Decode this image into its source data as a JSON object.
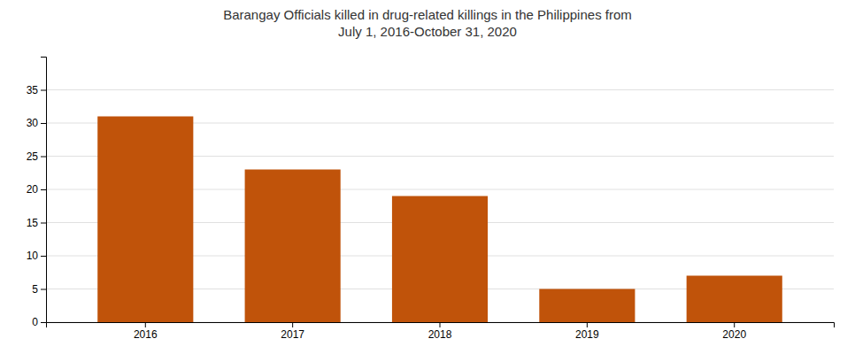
{
  "chart_data": {
    "type": "bar",
    "title": "Barangay Officials killed in drug-related killings in the Philippines from\nJuly 1, 2016-October 31, 2020",
    "categories": [
      "2016",
      "2017",
      "2018",
      "2019",
      "2020"
    ],
    "values": [
      31,
      23,
      19,
      5,
      7
    ],
    "color": "#c0530a",
    "ylim": [
      0,
      40
    ],
    "yticks": [
      0,
      5,
      10,
      15,
      20,
      25,
      30,
      35
    ],
    "grid": true
  }
}
